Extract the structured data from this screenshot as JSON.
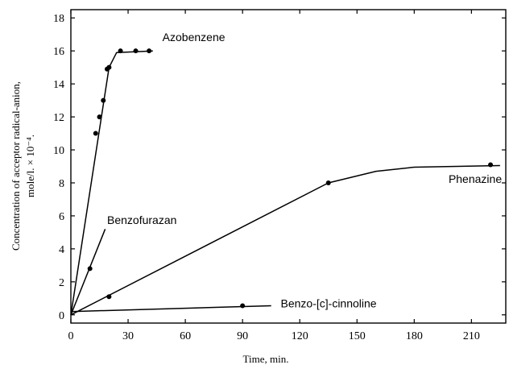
{
  "chart_data": {
    "type": "line",
    "title": "",
    "xlabel": "Time, min.",
    "ylabel_line1": "Concentration of acceptor radical-anion,",
    "ylabel_line2": "mole/l. × 10⁻⁴.",
    "xlim": [
      0,
      228
    ],
    "ylim": [
      -0.5,
      18.5
    ],
    "x_ticks": [
      0,
      30,
      60,
      90,
      120,
      150,
      180,
      210
    ],
    "y_ticks": [
      0,
      2,
      4,
      6,
      8,
      10,
      12,
      14,
      16,
      18
    ],
    "grid": false,
    "series": [
      {
        "name": "Azobenzene",
        "line": [
          [
            0,
            0
          ],
          [
            20,
            15
          ],
          [
            24,
            15.9
          ],
          [
            43,
            16
          ]
        ],
        "points": [
          [
            13,
            11
          ],
          [
            15,
            12
          ],
          [
            17,
            13
          ],
          [
            19,
            14.9
          ],
          [
            20,
            15
          ],
          [
            26,
            16
          ],
          [
            34,
            16
          ],
          [
            41,
            16
          ]
        ]
      },
      {
        "name": "Benzofurazan",
        "line": [
          [
            0,
            0
          ],
          [
            18,
            5.2
          ]
        ],
        "points": [
          [
            10,
            2.8
          ]
        ]
      },
      {
        "name": "Phenazine",
        "line": [
          [
            0,
            0
          ],
          [
            135,
            8
          ],
          [
            160,
            8.7
          ],
          [
            180,
            8.95
          ],
          [
            225,
            9.05
          ]
        ],
        "points": [
          [
            135,
            8
          ],
          [
            220,
            9.1
          ]
        ]
      },
      {
        "name": "Benzo-[c]-cinnoline",
        "line": [
          [
            0,
            0.2
          ],
          [
            105,
            0.55
          ]
        ],
        "points": [
          [
            20,
            1.1
          ],
          [
            90,
            0.55
          ]
        ]
      }
    ]
  }
}
